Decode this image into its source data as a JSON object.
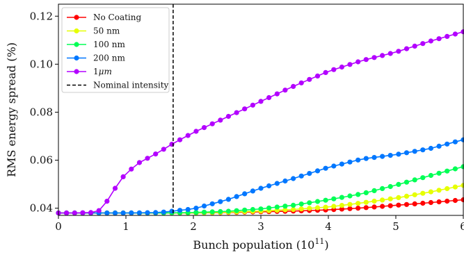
{
  "chart_data": {
    "type": "line",
    "xlabel": "Bunch population (10",
    "xlabel_sup": "11",
    "xlabel_end": ")",
    "ylabel": "RMS energy spread (%)",
    "xlim": [
      0,
      6
    ],
    "ylim": [
      0.037,
      0.125
    ],
    "xticks": [
      "0",
      "1",
      "2",
      "3",
      "4",
      "5",
      "6"
    ],
    "yticks": [
      "0.04",
      "0.06",
      "0.08",
      "0.10",
      "0.12"
    ],
    "grid": false,
    "legend_position": "top-left",
    "nominal_intensity": {
      "x": 1.7,
      "label": "Nominal intensity",
      "color": "#000000"
    },
    "series": [
      {
        "name": "No Coating",
        "color": "#ff0000",
        "x": [
          0,
          0.5,
          1,
          1.5,
          2,
          2.5,
          3,
          3.5,
          4,
          4.5,
          5,
          5.5,
          6
        ],
        "y": [
          0.038,
          0.038,
          0.038,
          0.038,
          0.038,
          0.0382,
          0.0385,
          0.0388,
          0.0393,
          0.0401,
          0.0412,
          0.0423,
          0.0435
        ]
      },
      {
        "name": "50 nm",
        "color": "#e6ff00",
        "x": [
          0,
          0.5,
          1,
          1.5,
          2,
          2.5,
          3,
          3.5,
          4,
          4.5,
          5,
          5.5,
          6
        ],
        "y": [
          0.038,
          0.038,
          0.038,
          0.038,
          0.038,
          0.0383,
          0.0388,
          0.0395,
          0.0405,
          0.0422,
          0.0442,
          0.0467,
          0.0495
        ]
      },
      {
        "name": "100 nm",
        "color": "#00ff55",
        "x": [
          0,
          0.5,
          1,
          1.5,
          2,
          2.5,
          3,
          3.5,
          4,
          4.5,
          5,
          5.5,
          6
        ],
        "y": [
          0.038,
          0.038,
          0.038,
          0.038,
          0.0382,
          0.0387,
          0.0397,
          0.0413,
          0.0435,
          0.046,
          0.0496,
          0.0535,
          0.0573
        ]
      },
      {
        "name": "200 nm",
        "color": "#0077ff",
        "x": [
          0,
          0.5,
          1,
          1.5,
          2,
          2.5,
          3,
          3.5,
          4,
          4.5,
          5,
          5.5,
          6
        ],
        "y": [
          0.038,
          0.038,
          0.038,
          0.0382,
          0.0397,
          0.0435,
          0.0483,
          0.0525,
          0.057,
          0.0605,
          0.0623,
          0.0648,
          0.0685
        ]
      },
      {
        "name": "1$\\mu m$",
        "label_main": "1",
        "label_italic": "μm",
        "color": "#b300ff",
        "x": [
          0,
          0.25,
          0.5,
          0.6,
          0.7,
          0.8,
          0.9,
          1,
          1.2,
          1.5,
          1.7,
          2,
          2.5,
          3,
          3.5,
          4,
          4.5,
          5,
          5.5,
          6
        ],
        "y": [
          0.038,
          0.038,
          0.0382,
          0.039,
          0.042,
          0.0465,
          0.051,
          0.0545,
          0.059,
          0.0635,
          0.067,
          0.0715,
          0.078,
          0.0845,
          0.091,
          0.097,
          0.1015,
          0.105,
          0.1095,
          0.1135
        ]
      }
    ]
  }
}
